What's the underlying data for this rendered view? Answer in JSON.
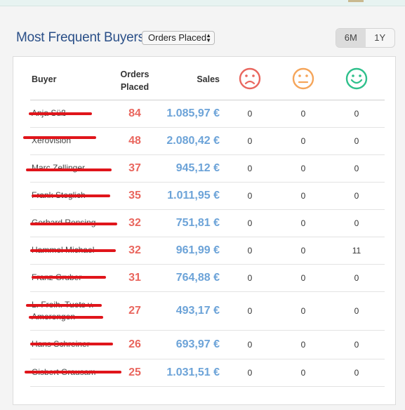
{
  "widget": {
    "title": "Most Frequent Buyers",
    "select_value": "Orders Placed",
    "ranges": [
      "6M",
      "1Y"
    ],
    "active_range": "6M"
  },
  "table": {
    "headers": {
      "buyer": "Buyer",
      "orders_line1": "Orders",
      "orders_line2": "Placed",
      "sales": "Sales"
    },
    "sentiment_icons": [
      "sad-face-icon",
      "neutral-face-icon",
      "happy-face-icon"
    ],
    "sentiment_colors": [
      "#e9665e",
      "#f5a55a",
      "#2fc08c"
    ],
    "rows": [
      {
        "buyer_lines": [
          "Anja Süß"
        ],
        "orders": "84",
        "sales": "1.085,97 €",
        "negative": "0",
        "neutral": "0",
        "positive": "0"
      },
      {
        "buyer_lines": [
          "Xerovision"
        ],
        "orders": "48",
        "sales": "2.080,42 €",
        "negative": "0",
        "neutral": "0",
        "positive": "0"
      },
      {
        "buyer_lines": [
          "Marc Zellinger"
        ],
        "orders": "37",
        "sales": "945,12 €",
        "negative": "0",
        "neutral": "0",
        "positive": "0"
      },
      {
        "buyer_lines": [
          "Frank Steglich"
        ],
        "orders": "35",
        "sales": "1.011,95 €",
        "negative": "0",
        "neutral": "0",
        "positive": "0"
      },
      {
        "buyer_lines": [
          "Gerhard Rensing"
        ],
        "orders": "32",
        "sales": "751,81 €",
        "negative": "0",
        "neutral": "0",
        "positive": "0"
      },
      {
        "buyer_lines": [
          "Hammel Michael"
        ],
        "orders": "32",
        "sales": "961,99 €",
        "negative": "0",
        "neutral": "0",
        "positive": "11"
      },
      {
        "buyer_lines": [
          "Franz Gruber"
        ],
        "orders": "31",
        "sales": "764,88 €",
        "negative": "0",
        "neutral": "0",
        "positive": "0"
      },
      {
        "buyer_lines": [
          "L. Freih. Tuets v.",
          "Amerongen"
        ],
        "orders": "27",
        "sales": "493,17 €",
        "negative": "0",
        "neutral": "0",
        "positive": "0"
      },
      {
        "buyer_lines": [
          "Hans Schreiner"
        ],
        "orders": "26",
        "sales": "693,97 €",
        "negative": "0",
        "neutral": "0",
        "positive": "0"
      },
      {
        "buyer_lines": [
          "Gisbert Grausam"
        ],
        "orders": "25",
        "sales": "1.031,51 €",
        "negative": "0",
        "neutral": "0",
        "positive": "0"
      }
    ]
  },
  "redaction_color": "#e0151b"
}
